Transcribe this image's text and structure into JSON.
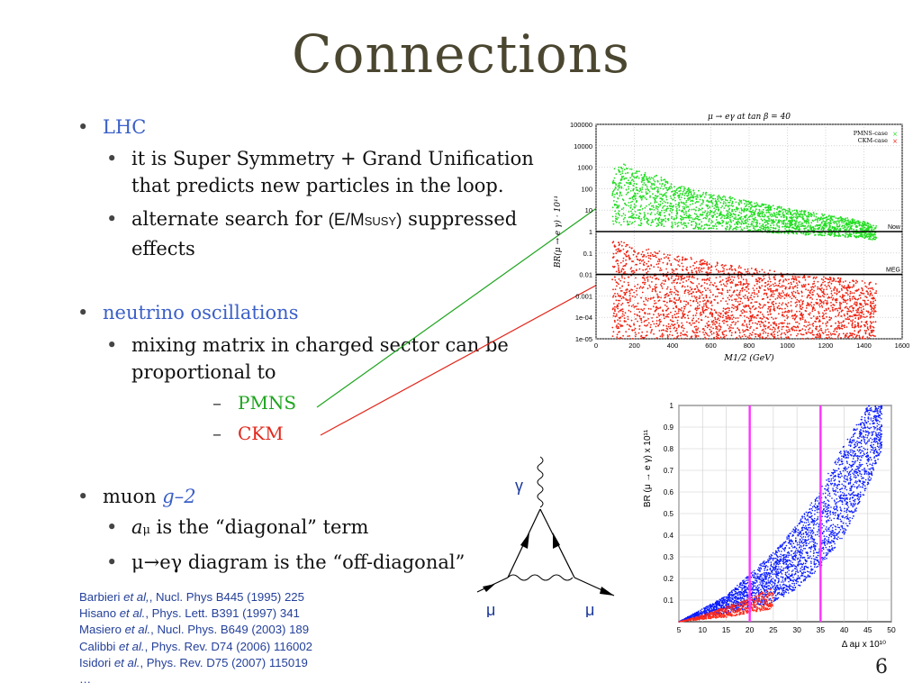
{
  "title": "Connections",
  "bullets": {
    "lhc": {
      "label": "LHC",
      "sub1": {
        "line1": "it is Super Symmetry + Grand Unification",
        "line2": "that predicts new particles in the loop."
      },
      "sub2": {
        "pre": "alternate search for ",
        "expr": "(E/M",
        "sub": "SUSY",
        "post": ")",
        "rest": " suppressed",
        "line2": "effects"
      }
    },
    "neutrino": {
      "label": "neutrino oscillations",
      "sub1": {
        "line1": "mixing matrix in charged sector can be",
        "line2": "proportional to"
      },
      "pmns": "PMNS",
      "ckm": "CKM"
    },
    "muon": {
      "pre": "muon ",
      "g2": "g–2",
      "sub1": {
        "a": "a",
        "mu": "μ",
        "rest": " is the “diagonal” term"
      },
      "sub2": "μ→eγ diagram is the “off-diagonal”"
    }
  },
  "references": [
    {
      "authors": "Barbieri ",
      "etal": "et al,",
      "rest": ", Nucl. Phys B445 (1995) 225"
    },
    {
      "authors": "Hisano ",
      "etal": "et al.",
      "rest": ", Phys. Lett. B391 (1997) 341"
    },
    {
      "authors": "Masiero ",
      "etal": "et al.",
      "rest": ", Nucl. Phys. B649 (2003) 189"
    },
    {
      "authors": "Calibbi ",
      "etal": "et al.",
      "rest": ",   Phys. Rev. D74 (2006) 116002"
    },
    {
      "authors": "Isidori ",
      "etal": "et al.",
      "rest": ", Phys. Rev. D75 (2007) 115019"
    },
    {
      "authors": "…",
      "etal": "",
      "rest": ""
    }
  ],
  "page_number": "6",
  "feynman": {
    "photon": "γ",
    "mu_left": "μ",
    "mu_right": "μ"
  },
  "colors": {
    "title": "#4a4630",
    "blue": "#3a5fc8",
    "green": "#1ea51e",
    "red": "#e2261a",
    "magenta": "#ff33ff",
    "scatter_blue": "#0a1cff"
  },
  "chart_data": [
    {
      "type": "scatter",
      "title": "μ → eγ at tan β = 40",
      "xlabel": "M1/2 (GeV)",
      "ylabel": "BR(μ → e γ) · 10¹¹",
      "xlim": [
        0,
        1600
      ],
      "ylim": [
        1e-05,
        100000
      ],
      "yscale": "log",
      "x_ticks": [
        "0",
        "200",
        "400",
        "600",
        "800",
        "1000",
        "1200",
        "1400",
        "1600"
      ],
      "y_ticks": [
        "100000",
        "10000",
        "1000",
        "100",
        "10",
        "1",
        "0.1",
        "0.01",
        "0.001",
        "1e-04",
        "1e-05"
      ],
      "legend": "top-right",
      "series": [
        {
          "name": "PMNS-case",
          "color": "#22dd22",
          "x": [
            100,
            200,
            400,
            600,
            800,
            1000,
            1200,
            1400,
            1450
          ],
          "y_high": [
            2000,
            800,
            150,
            60,
            25,
            12,
            6,
            3,
            2
          ],
          "y_low": [
            2,
            2,
            1.5,
            1.2,
            1,
            0.8,
            0.6,
            0.5,
            0.4
          ]
        },
        {
          "name": "CKM-case",
          "color": "#ee2211",
          "x": [
            100,
            200,
            400,
            600,
            800,
            1000,
            1200,
            1400,
            1450
          ],
          "y_high": [
            0.4,
            0.2,
            0.08,
            0.04,
            0.02,
            0.012,
            0.008,
            0.005,
            0.004
          ],
          "y_low": [
            1e-05,
            1e-05,
            1e-05,
            1e-05,
            1e-05,
            1e-05,
            1e-05,
            1e-05,
            1e-05
          ]
        }
      ],
      "annotations": [
        {
          "label": "Now",
          "y": 1
        },
        {
          "label": "MEG",
          "y": 0.01
        }
      ]
    },
    {
      "type": "scatter",
      "xlabel": "Δ aμ x 10¹⁰",
      "ylabel": "BR (μ → e γ) x 10¹¹",
      "xlim": [
        5,
        50
      ],
      "ylim": [
        0,
        1
      ],
      "x_ticks": [
        "5",
        "10",
        "15",
        "20",
        "25",
        "30",
        "35",
        "40",
        "45",
        "50"
      ],
      "y_ticks": [
        "0.1",
        "0.2",
        "0.3",
        "0.4",
        "0.5",
        "0.6",
        "0.7",
        "0.8",
        "0.9",
        "1"
      ],
      "series": [
        {
          "name": "",
          "color": "#0a1cff",
          "x": [
            5,
            10,
            15,
            20,
            25,
            30,
            35,
            40,
            45,
            48
          ],
          "y_upper": [
            0.0,
            0.06,
            0.12,
            0.22,
            0.32,
            0.45,
            0.62,
            0.82,
            1.0,
            1.0
          ],
          "y_lower": [
            0.0,
            0.02,
            0.04,
            0.06,
            0.09,
            0.15,
            0.25,
            0.4,
            0.62,
            0.8
          ]
        },
        {
          "name": "",
          "color": "#ff2a1a",
          "x": [
            5,
            10,
            15,
            20,
            25
          ],
          "y_upper": [
            0.0,
            0.03,
            0.07,
            0.11,
            0.16
          ],
          "y_lower": [
            0.0,
            0.01,
            0.02,
            0.04,
            0.06
          ]
        }
      ],
      "vlines": [
        20,
        35
      ]
    }
  ]
}
